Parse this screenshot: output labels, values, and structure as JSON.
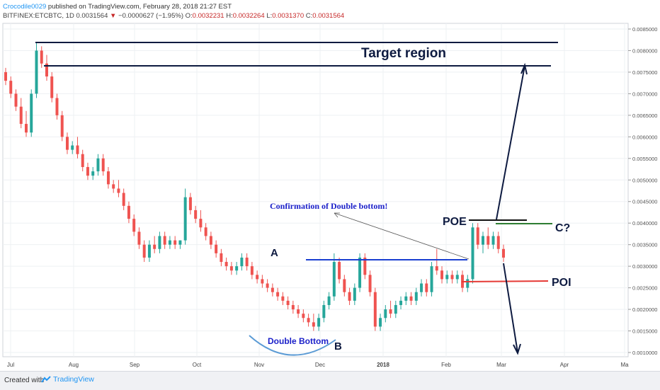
{
  "header": {
    "author": "Crocodile0029",
    "published": "published on TradingView.com, February 28, 2018 21:27 EST",
    "symbol_line": "BITFINEX:ETCBTC, 1D",
    "last": "0.0031564",
    "change_arrow": "▼",
    "change": "−0.0000627 (−1.95%)",
    "o_label": "O:",
    "o": "0.0032231",
    "h_label": "H:",
    "h": "0.0032264",
    "l_label": "L:",
    "l": "0.0031370",
    "c_label": "C:",
    "c": "0.0031564"
  },
  "footer": {
    "created_with": "Created with",
    "brand": "TradingView"
  },
  "colors": {
    "up": "#26a69a",
    "down": "#ef5350",
    "annotation": "#0d1a40",
    "confirm_line": "#1a3fd1",
    "poi_line": "#e53935",
    "c_line": "#2e7d32",
    "arc": "#5b9bd5"
  },
  "chart_data": {
    "type": "candlestick",
    "title": "BITFINEX:ETCBTC, 1D",
    "ylim": [
      0.00095,
      0.00087
    ],
    "y_ticks": [
      "0.0010000",
      "0.0015000",
      "0.0020000",
      "0.0025000",
      "0.0030000",
      "0.0035000",
      "0.0040000",
      "0.0045000",
      "0.0050000",
      "0.0055000",
      "0.0060000",
      "0.0065000",
      "0.0070000",
      "0.0075000",
      "0.0080000",
      "0.0085000"
    ],
    "x_ticks": [
      "Jul",
      "Aug",
      "Sep",
      "Oct",
      "Nov",
      "Dec",
      "2018",
      "Feb",
      "Mar",
      "Apr",
      "Ma"
    ],
    "grid": true,
    "candles": [
      {
        "o": 0.0075,
        "h": 0.0076,
        "l": 0.0072,
        "c": 0.0073
      },
      {
        "o": 0.0073,
        "h": 0.0074,
        "l": 0.0069,
        "c": 0.007
      },
      {
        "o": 0.007,
        "h": 0.0071,
        "l": 0.0066,
        "c": 0.0067
      },
      {
        "o": 0.0067,
        "h": 0.0069,
        "l": 0.0062,
        "c": 0.0063
      },
      {
        "o": 0.0063,
        "h": 0.0066,
        "l": 0.006,
        "c": 0.0061
      },
      {
        "o": 0.0061,
        "h": 0.0071,
        "l": 0.006,
        "c": 0.007
      },
      {
        "o": 0.007,
        "h": 0.0082,
        "l": 0.0069,
        "c": 0.008
      },
      {
        "o": 0.008,
        "h": 0.0081,
        "l": 0.0076,
        "c": 0.0077
      },
      {
        "o": 0.0077,
        "h": 0.0079,
        "l": 0.0073,
        "c": 0.0074
      },
      {
        "o": 0.0074,
        "h": 0.0075,
        "l": 0.0068,
        "c": 0.0069
      },
      {
        "o": 0.0069,
        "h": 0.007,
        "l": 0.0064,
        "c": 0.0065
      },
      {
        "o": 0.0065,
        "h": 0.0066,
        "l": 0.0059,
        "c": 0.006
      },
      {
        "o": 0.006,
        "h": 0.0061,
        "l": 0.0056,
        "c": 0.0057
      },
      {
        "o": 0.0057,
        "h": 0.0059,
        "l": 0.0056,
        "c": 0.0058
      },
      {
        "o": 0.0058,
        "h": 0.006,
        "l": 0.0055,
        "c": 0.0056
      },
      {
        "o": 0.0056,
        "h": 0.0057,
        "l": 0.0052,
        "c": 0.0053
      },
      {
        "o": 0.0053,
        "h": 0.0054,
        "l": 0.005,
        "c": 0.0051
      },
      {
        "o": 0.0051,
        "h": 0.0053,
        "l": 0.005,
        "c": 0.0052
      },
      {
        "o": 0.0052,
        "h": 0.0056,
        "l": 0.0051,
        "c": 0.0055
      },
      {
        "o": 0.0055,
        "h": 0.0056,
        "l": 0.0051,
        "c": 0.0052
      },
      {
        "o": 0.0052,
        "h": 0.0053,
        "l": 0.0048,
        "c": 0.0049
      },
      {
        "o": 0.0049,
        "h": 0.005,
        "l": 0.0047,
        "c": 0.0048
      },
      {
        "o": 0.0048,
        "h": 0.005,
        "l": 0.0046,
        "c": 0.0047
      },
      {
        "o": 0.0047,
        "h": 0.0048,
        "l": 0.0043,
        "c": 0.0044
      },
      {
        "o": 0.0044,
        "h": 0.0045,
        "l": 0.004,
        "c": 0.0041
      },
      {
        "o": 0.0041,
        "h": 0.0042,
        "l": 0.0037,
        "c": 0.0038
      },
      {
        "o": 0.0038,
        "h": 0.0039,
        "l": 0.0034,
        "c": 0.0035
      },
      {
        "o": 0.0035,
        "h": 0.0036,
        "l": 0.0031,
        "c": 0.0032
      },
      {
        "o": 0.0032,
        "h": 0.0036,
        "l": 0.0031,
        "c": 0.0035
      },
      {
        "o": 0.0035,
        "h": 0.0037,
        "l": 0.0033,
        "c": 0.0034
      },
      {
        "o": 0.0034,
        "h": 0.0038,
        "l": 0.0033,
        "c": 0.0037
      },
      {
        "o": 0.0037,
        "h": 0.0038,
        "l": 0.0034,
        "c": 0.0035
      },
      {
        "o": 0.0035,
        "h": 0.0037,
        "l": 0.0034,
        "c": 0.0036
      },
      {
        "o": 0.0036,
        "h": 0.0037,
        "l": 0.0034,
        "c": 0.0035
      },
      {
        "o": 0.0035,
        "h": 0.0036,
        "l": 0.0034,
        "c": 0.0036
      },
      {
        "o": 0.0036,
        "h": 0.0048,
        "l": 0.0035,
        "c": 0.0046
      },
      {
        "o": 0.0046,
        "h": 0.0047,
        "l": 0.0042,
        "c": 0.0043
      },
      {
        "o": 0.0043,
        "h": 0.0044,
        "l": 0.004,
        "c": 0.0041
      },
      {
        "o": 0.0041,
        "h": 0.0043,
        "l": 0.0038,
        "c": 0.0039
      },
      {
        "o": 0.0039,
        "h": 0.004,
        "l": 0.0036,
        "c": 0.0037
      },
      {
        "o": 0.0037,
        "h": 0.0038,
        "l": 0.0034,
        "c": 0.0035
      },
      {
        "o": 0.0035,
        "h": 0.0036,
        "l": 0.0032,
        "c": 0.0033
      },
      {
        "o": 0.0033,
        "h": 0.0034,
        "l": 0.003,
        "c": 0.0031
      },
      {
        "o": 0.0031,
        "h": 0.0032,
        "l": 0.0029,
        "c": 0.003
      },
      {
        "o": 0.003,
        "h": 0.0031,
        "l": 0.0028,
        "c": 0.0029
      },
      {
        "o": 0.0029,
        "h": 0.0031,
        "l": 0.0028,
        "c": 0.003
      },
      {
        "o": 0.003,
        "h": 0.0033,
        "l": 0.0029,
        "c": 0.0032
      },
      {
        "o": 0.0032,
        "h": 0.0033,
        "l": 0.0029,
        "c": 0.003
      },
      {
        "o": 0.003,
        "h": 0.0031,
        "l": 0.0027,
        "c": 0.0028
      },
      {
        "o": 0.0028,
        "h": 0.0029,
        "l": 0.0026,
        "c": 0.0027
      },
      {
        "o": 0.0027,
        "h": 0.0028,
        "l": 0.0025,
        "c": 0.0026
      },
      {
        "o": 0.0026,
        "h": 0.0027,
        "l": 0.0024,
        "c": 0.0025
      },
      {
        "o": 0.0025,
        "h": 0.0026,
        "l": 0.0023,
        "c": 0.0024
      },
      {
        "o": 0.0024,
        "h": 0.0025,
        "l": 0.0022,
        "c": 0.0023
      },
      {
        "o": 0.0023,
        "h": 0.0024,
        "l": 0.0021,
        "c": 0.0022
      },
      {
        "o": 0.0022,
        "h": 0.0023,
        "l": 0.002,
        "c": 0.0021
      },
      {
        "o": 0.0021,
        "h": 0.0022,
        "l": 0.0019,
        "c": 0.002
      },
      {
        "o": 0.002,
        "h": 0.0021,
        "l": 0.0018,
        "c": 0.0019
      },
      {
        "o": 0.0019,
        "h": 0.002,
        "l": 0.0017,
        "c": 0.0018
      },
      {
        "o": 0.0018,
        "h": 0.0019,
        "l": 0.0016,
        "c": 0.0017
      },
      {
        "o": 0.0017,
        "h": 0.0019,
        "l": 0.0015,
        "c": 0.0016
      },
      {
        "o": 0.0016,
        "h": 0.0019,
        "l": 0.0015,
        "c": 0.0018
      },
      {
        "o": 0.0018,
        "h": 0.0022,
        "l": 0.0017,
        "c": 0.0021
      },
      {
        "o": 0.0021,
        "h": 0.0024,
        "l": 0.002,
        "c": 0.0023
      },
      {
        "o": 0.0023,
        "h": 0.0033,
        "l": 0.0022,
        "c": 0.0031
      },
      {
        "o": 0.0031,
        "h": 0.0032,
        "l": 0.0026,
        "c": 0.0027
      },
      {
        "o": 0.0027,
        "h": 0.0028,
        "l": 0.0023,
        "c": 0.0024
      },
      {
        "o": 0.0024,
        "h": 0.0025,
        "l": 0.0021,
        "c": 0.0022
      },
      {
        "o": 0.0022,
        "h": 0.0026,
        "l": 0.0021,
        "c": 0.0025
      },
      {
        "o": 0.0025,
        "h": 0.0033,
        "l": 0.0024,
        "c": 0.0032
      },
      {
        "o": 0.0032,
        "h": 0.0033,
        "l": 0.0027,
        "c": 0.0028
      },
      {
        "o": 0.0028,
        "h": 0.0029,
        "l": 0.0023,
        "c": 0.0024
      },
      {
        "o": 0.0024,
        "h": 0.0025,
        "l": 0.0015,
        "c": 0.0016
      },
      {
        "o": 0.0016,
        "h": 0.0019,
        "l": 0.0015,
        "c": 0.0018
      },
      {
        "o": 0.0018,
        "h": 0.0021,
        "l": 0.0017,
        "c": 0.002
      },
      {
        "o": 0.002,
        "h": 0.0022,
        "l": 0.0018,
        "c": 0.0019
      },
      {
        "o": 0.0019,
        "h": 0.0022,
        "l": 0.0018,
        "c": 0.0021
      },
      {
        "o": 0.0021,
        "h": 0.0023,
        "l": 0.002,
        "c": 0.0022
      },
      {
        "o": 0.0022,
        "h": 0.0024,
        "l": 0.0021,
        "c": 0.0023
      },
      {
        "o": 0.0023,
        "h": 0.0024,
        "l": 0.0021,
        "c": 0.0022
      },
      {
        "o": 0.0022,
        "h": 0.0025,
        "l": 0.0021,
        "c": 0.0024
      },
      {
        "o": 0.0024,
        "h": 0.0027,
        "l": 0.0023,
        "c": 0.0026
      },
      {
        "o": 0.0026,
        "h": 0.0027,
        "l": 0.0023,
        "c": 0.0024
      },
      {
        "o": 0.0024,
        "h": 0.0031,
        "l": 0.0023,
        "c": 0.003
      },
      {
        "o": 0.003,
        "h": 0.0034,
        "l": 0.0028,
        "c": 0.0029
      },
      {
        "o": 0.0029,
        "h": 0.003,
        "l": 0.0026,
        "c": 0.0027
      },
      {
        "o": 0.0027,
        "h": 0.0029,
        "l": 0.0026,
        "c": 0.0028
      },
      {
        "o": 0.0028,
        "h": 0.0029,
        "l": 0.0026,
        "c": 0.0027
      },
      {
        "o": 0.0027,
        "h": 0.0029,
        "l": 0.0026,
        "c": 0.0028
      },
      {
        "o": 0.0028,
        "h": 0.0029,
        "l": 0.0024,
        "c": 0.0025
      },
      {
        "o": 0.0025,
        "h": 0.0028,
        "l": 0.0024,
        "c": 0.0027
      },
      {
        "o": 0.0027,
        "h": 0.004,
        "l": 0.0026,
        "c": 0.0039
      },
      {
        "o": 0.0039,
        "h": 0.004,
        "l": 0.0034,
        "c": 0.0035
      },
      {
        "o": 0.0035,
        "h": 0.0038,
        "l": 0.0033,
        "c": 0.0037
      },
      {
        "o": 0.0037,
        "h": 0.0039,
        "l": 0.0034,
        "c": 0.0035
      },
      {
        "o": 0.0035,
        "h": 0.0038,
        "l": 0.0034,
        "c": 0.0037
      },
      {
        "o": 0.0037,
        "h": 0.0038,
        "l": 0.0033,
        "c": 0.0034
      },
      {
        "o": 0.0034,
        "h": 0.0035,
        "l": 0.0031,
        "c": 0.0032
      }
    ],
    "annotations": {
      "target_region": "Target region",
      "confirmation": "Confirmation of Double bottom!",
      "poe": "POE",
      "c": "C?",
      "poi": "POI",
      "a": "A",
      "b": "B",
      "double_bottom": "Double Bottom"
    }
  }
}
